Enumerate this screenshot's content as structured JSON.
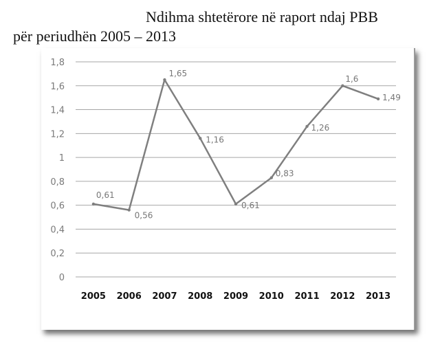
{
  "title": {
    "line1": "Ndihma shtetërore në raport ndaj PBB",
    "line2": "për periudhën 2005 – 2013"
  },
  "colors": {
    "line": "#7f7f7f",
    "grid": "#a6a6a6"
  },
  "chart_data": {
    "type": "line",
    "categories": [
      "2005",
      "2006",
      "2007",
      "2008",
      "2009",
      "2010",
      "2011",
      "2012",
      "2013"
    ],
    "series": [
      {
        "values": [
          0.61,
          0.56,
          1.65,
          1.16,
          0.61,
          0.83,
          1.26,
          1.6,
          1.49
        ]
      }
    ],
    "data_labels": [
      "0,61",
      "0,56",
      "1,65",
      "1,16",
      "0,61",
      "0,83",
      "1,26",
      "1,6",
      "1,49"
    ],
    "yticks": [
      "0",
      "0,2",
      "0,4",
      "0,6",
      "0,8",
      "1",
      "1,2",
      "1,4",
      "1,6",
      "1,8"
    ],
    "ylim": [
      0,
      1.8
    ],
    "grid": true,
    "legend": "none"
  }
}
